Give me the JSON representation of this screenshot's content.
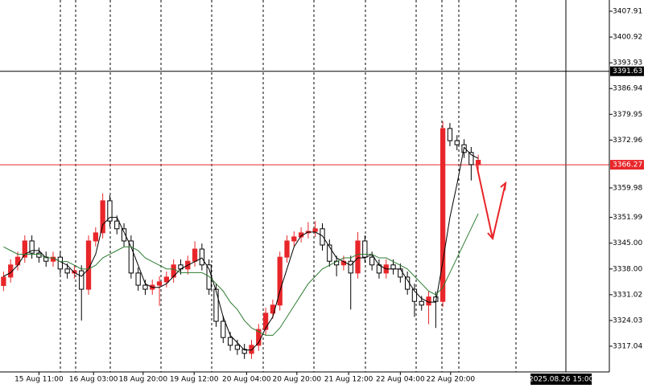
{
  "chart_data": {
    "type": "candlestick",
    "open": [
      3333.5,
      3335.8,
      3339.1,
      3341.2,
      3345.6,
      3342.3,
      3341.2,
      3340.1,
      3341.2,
      3338.0,
      3336.9,
      3337.5,
      3332.5,
      3345.6,
      3347.8,
      3356.5,
      3351.0,
      3348.9,
      3345.6,
      3336.9,
      3333.6,
      3332.5,
      3333.6,
      3334.5,
      3335.8,
      3339.1,
      3338.0,
      3340.1,
      3343.4,
      3339.1,
      3332.5,
      3323.8,
      3319.4,
      3317.3,
      3316.2,
      3315.1,
      3317.3,
      3321.6,
      3326.0,
      3328.2,
      3341.2,
      3345.6,
      3346.7,
      3347.8,
      3348.2,
      3348.9,
      3344.5,
      3340.1,
      3339.1,
      3340.1,
      3336.9,
      3345.6,
      3341.2,
      3339.1,
      3336.9,
      3339.1,
      3338.0,
      3335.8,
      3332.5,
      3329.2,
      3328.2,
      3330.4,
      3329.2,
      3376.1,
      3372.8,
      3371.7,
      3369.6,
      3366.3
    ],
    "high": [
      3337.3,
      3340.6,
      3342.7,
      3347.1,
      3347.1,
      3343.8,
      3342.7,
      3342.7,
      3342.7,
      3339.5,
      3339.0,
      3339.0,
      3347.1,
      3349.3,
      3358.5,
      3358.0,
      3352.5,
      3350.4,
      3347.1,
      3338.4,
      3335.1,
      3335.1,
      3336.0,
      3337.3,
      3340.6,
      3340.6,
      3341.6,
      3345.5,
      3344.9,
      3340.6,
      3334.0,
      3325.3,
      3320.9,
      3318.8,
      3317.7,
      3318.8,
      3323.1,
      3327.5,
      3329.7,
      3342.7,
      3347.1,
      3348.2,
      3349.3,
      3350.7,
      3351.0,
      3350.4,
      3346.0,
      3341.6,
      3341.6,
      3341.6,
      3348.0,
      3347.1,
      3342.7,
      3340.6,
      3340.6,
      3340.6,
      3339.5,
      3337.3,
      3334.0,
      3330.7,
      3331.9,
      3331.9,
      3378.0,
      3377.6,
      3374.3,
      3373.2,
      3371.1,
      3369.0
    ],
    "low": [
      3332.0,
      3334.3,
      3337.6,
      3339.7,
      3340.8,
      3339.7,
      3338.6,
      3338.6,
      3336.5,
      3335.4,
      3335.4,
      3324.0,
      3331.0,
      3344.1,
      3346.3,
      3349.5,
      3347.4,
      3344.1,
      3335.4,
      3332.1,
      3331.0,
      3331.0,
      3328.0,
      3333.0,
      3334.3,
      3336.5,
      3336.5,
      3338.6,
      3337.6,
      3331.0,
      3322.3,
      3317.9,
      3315.8,
      3314.7,
      3313.6,
      3313.6,
      3315.8,
      3320.1,
      3324.5,
      3326.7,
      3339.7,
      3344.1,
      3345.2,
      3346.3,
      3346.7,
      3343.0,
      3338.6,
      3336.0,
      3337.6,
      3327.0,
      3335.4,
      3339.7,
      3337.6,
      3335.4,
      3335.4,
      3336.5,
      3334.3,
      3331.0,
      3325.0,
      3326.7,
      3323.0,
      3322.0,
      3327.7,
      3371.3,
      3370.2,
      3368.1,
      3362.0,
      3364.8
    ],
    "close": [
      3335.8,
      3339.1,
      3341.2,
      3345.6,
      3342.3,
      3341.2,
      3340.1,
      3341.2,
      3338.0,
      3336.9,
      3337.5,
      3332.5,
      3345.6,
      3347.8,
      3356.5,
      3351.0,
      3348.9,
      3345.6,
      3336.9,
      3333.6,
      3332.5,
      3333.6,
      3334.5,
      3335.8,
      3339.1,
      3338.0,
      3340.1,
      3343.4,
      3339.1,
      3332.5,
      3323.8,
      3319.4,
      3317.3,
      3316.2,
      3315.1,
      3317.3,
      3321.6,
      3326.0,
      3328.2,
      3341.2,
      3345.6,
      3346.7,
      3347.8,
      3348.2,
      3348.9,
      3344.5,
      3340.1,
      3339.1,
      3340.1,
      3336.9,
      3345.6,
      3341.2,
      3339.1,
      3336.9,
      3339.1,
      3338.0,
      3335.8,
      3332.5,
      3329.2,
      3328.2,
      3330.4,
      3329.2,
      3376.1,
      3372.8,
      3371.7,
      3369.6,
      3366.3,
      3367.5
    ],
    "up_color": "#e8262a",
    "down_color": "#000000",
    "series": [
      {
        "color": "#000000",
        "values": [
          3336,
          3337,
          3339,
          3342,
          3343,
          3343,
          3341,
          3341,
          3340,
          3339,
          3337,
          3336,
          3338,
          3342,
          3350,
          3352,
          3352,
          3348,
          3344,
          3339,
          3334,
          3333,
          3333,
          3334,
          3336,
          3338,
          3339,
          3340,
          3341,
          3338,
          3332,
          3325,
          3320,
          3318,
          3316,
          3316,
          3318,
          3322,
          3325,
          3332,
          3338,
          3344,
          3347,
          3348,
          3348,
          3347,
          3344,
          3341,
          3340,
          3339,
          3341,
          3341,
          3342,
          3339,
          3338,
          3338,
          3338,
          3335,
          3332,
          3330,
          3329,
          3329,
          3340,
          3352,
          3361,
          3371,
          3369,
          3368
        ]
      },
      {
        "color": "#2e7d32",
        "values": [
          3344,
          3343,
          3342,
          3342,
          3342,
          3342,
          3341,
          3341,
          3340,
          3340,
          3339,
          3338,
          3338,
          3339,
          3341,
          3342,
          3343,
          3344,
          3344,
          3343,
          3341,
          3340,
          3339,
          3338,
          3338,
          3337,
          3337,
          3337,
          3337,
          3336,
          3334,
          3332,
          3329,
          3327,
          3324,
          3322,
          3321,
          3320,
          3320,
          3322,
          3325,
          3328,
          3331,
          3334,
          3336,
          3338,
          3339,
          3340,
          3341,
          3341,
          3342,
          3342,
          3342,
          3341,
          3341,
          3340,
          3339,
          3338,
          3336,
          3334,
          3332,
          3331,
          3333,
          3337,
          3341,
          3345,
          3349,
          3353
        ]
      }
    ],
    "ylim": [
      3310.07,
      3410.96
    ],
    "yticks": [
      3407.91,
      3400.92,
      3393.93,
      3386.94,
      3379.95,
      3372.96,
      3359.98,
      3351.99,
      {
        "value": 3345.0,
        "label": "3345.00"
      },
      {
        "value": 3338.0,
        "label": "3338.00"
      },
      3331.02,
      3324.03,
      3317.04
    ],
    "xlim": [
      -0.5,
      85.5
    ],
    "xticks": [
      {
        "value": 5,
        "label": "15 Aug 11:00"
      },
      {
        "value": 12.7,
        "label": "16 Aug 03:00"
      },
      {
        "value": 19.7,
        "label": "18 Aug 20:00"
      },
      {
        "value": 26.9,
        "label": "19 Aug 12:00"
      },
      {
        "value": 34.3,
        "label": "20 Aug 04:00"
      },
      {
        "value": 41.4,
        "label": "20 Aug 20:00"
      },
      {
        "value": 48.7,
        "label": "21 Aug 12:00"
      },
      {
        "value": 56,
        "label": "22 Aug 04:00"
      },
      {
        "value": 63.1,
        "label": "22 Aug 20:00"
      }
    ],
    "cursor_time": {
      "value": 78.7,
      "label": "2025.08.26 15:00"
    },
    "price_lines": [
      {
        "value": 3391.63,
        "label": "3391.63",
        "color": "#000000"
      },
      {
        "value": 3366.27,
        "label": "3366.27",
        "color": "#e8262a"
      }
    ]
  }
}
